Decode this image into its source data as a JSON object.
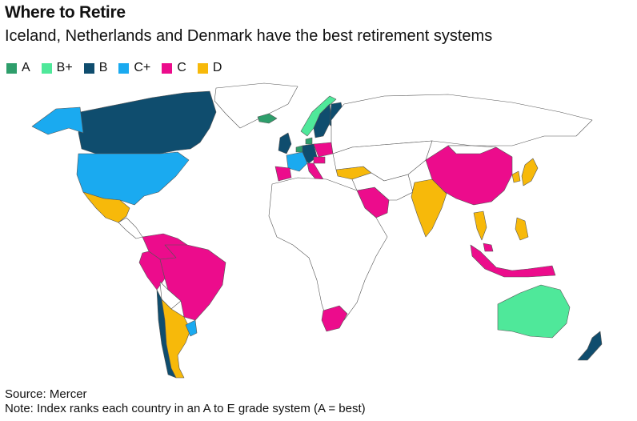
{
  "header": {
    "title": "Where to Retire",
    "subtitle": "Iceland, Netherlands and Denmark have the best retirement systems"
  },
  "legend": [
    {
      "grade": "A",
      "color": "#2e9e6b"
    },
    {
      "grade": "B+",
      "color": "#4fe89a"
    },
    {
      "grade": "B",
      "color": "#0f4d6e"
    },
    {
      "grade": "C+",
      "color": "#1aaaf0"
    },
    {
      "grade": "C",
      "color": "#ec0c8c"
    },
    {
      "grade": "D",
      "color": "#f7b90a"
    }
  ],
  "map": {
    "base_color": "#ffffff",
    "border_color": "#555555",
    "countries": [
      {
        "name": "Canada",
        "grade": "B"
      },
      {
        "name": "United States",
        "grade": "C+"
      },
      {
        "name": "Mexico",
        "grade": "D"
      },
      {
        "name": "Greenland",
        "grade": "none"
      },
      {
        "name": "Iceland",
        "grade": "A"
      },
      {
        "name": "Norway",
        "grade": "B+"
      },
      {
        "name": "Sweden",
        "grade": "B"
      },
      {
        "name": "Finland",
        "grade": "B"
      },
      {
        "name": "Denmark",
        "grade": "A"
      },
      {
        "name": "Netherlands",
        "grade": "A"
      },
      {
        "name": "United Kingdom",
        "grade": "B"
      },
      {
        "name": "Ireland",
        "grade": "B"
      },
      {
        "name": "Germany",
        "grade": "B"
      },
      {
        "name": "France",
        "grade": "C+"
      },
      {
        "name": "Spain",
        "grade": "C"
      },
      {
        "name": "Italy",
        "grade": "C"
      },
      {
        "name": "Poland",
        "grade": "C"
      },
      {
        "name": "Austria",
        "grade": "C"
      },
      {
        "name": "Switzerland",
        "grade": "B"
      },
      {
        "name": "Turkey",
        "grade": "D"
      },
      {
        "name": "Saudi Arabia",
        "grade": "C"
      },
      {
        "name": "China",
        "grade": "C"
      },
      {
        "name": "India",
        "grade": "D"
      },
      {
        "name": "Japan",
        "grade": "D"
      },
      {
        "name": "South Korea",
        "grade": "D"
      },
      {
        "name": "Thailand",
        "grade": "D"
      },
      {
        "name": "Philippines",
        "grade": "D"
      },
      {
        "name": "Malaysia",
        "grade": "C"
      },
      {
        "name": "Indonesia",
        "grade": "C"
      },
      {
        "name": "Australia",
        "grade": "B+"
      },
      {
        "name": "New Zealand",
        "grade": "B"
      },
      {
        "name": "South Africa",
        "grade": "C"
      },
      {
        "name": "Colombia",
        "grade": "C"
      },
      {
        "name": "Peru",
        "grade": "C"
      },
      {
        "name": "Brazil",
        "grade": "C"
      },
      {
        "name": "Chile",
        "grade": "B"
      },
      {
        "name": "Argentina",
        "grade": "D"
      },
      {
        "name": "Uruguay",
        "grade": "C+"
      }
    ]
  },
  "footer": {
    "source": "Source: Mercer",
    "note": "Note: Index ranks each country in an A to E grade system (A = best)"
  }
}
